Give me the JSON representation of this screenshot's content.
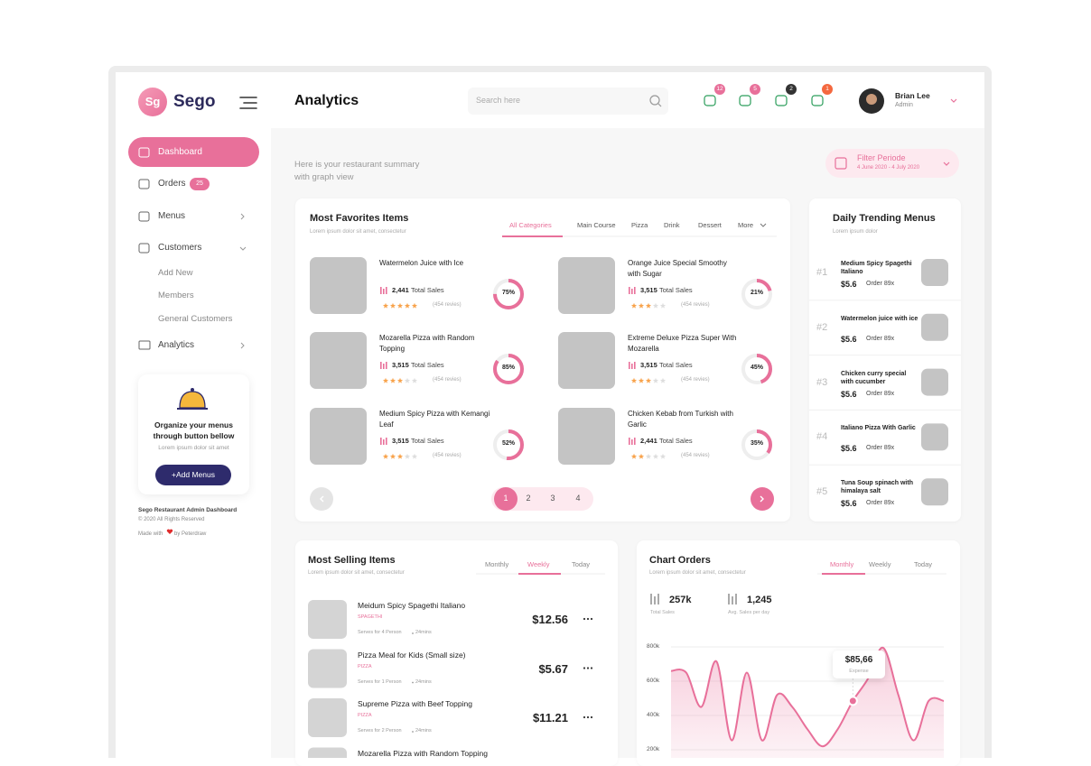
{
  "sidebar": {
    "logo": "Sg",
    "brand": "Sego",
    "nav": [
      {
        "label": "Dashboard"
      },
      {
        "label": "Orders",
        "badge": "25"
      },
      {
        "label": "Menus"
      },
      {
        "label": "Customers"
      }
    ],
    "submenu": [
      "Add New",
      "Members",
      "General Customers"
    ],
    "analytics": "Analytics",
    "promo": {
      "title": "Organize your menus through button bellow",
      "text": "Lorem ipsum dolor sit amet",
      "button": "+Add Menus"
    },
    "footer": {
      "line1": "Sego Restaurant Admin Dashboard",
      "line2": "© 2020 All Rights Reserved",
      "made": "Made with",
      "by": "by Peterdraw"
    }
  },
  "header": {
    "title": "Analytics",
    "search": "Search here",
    "badges": [
      "12",
      "5",
      "2",
      "1"
    ],
    "user": {
      "name": "Brian Lee",
      "role": "Admin"
    }
  },
  "intro": "Here is your restaurant summary with graph view",
  "filter": {
    "label": "Filter Periode",
    "range": "4 June 2020 - 4 July 2020"
  },
  "favorites": {
    "title": "Most Favorites Items",
    "subtitle": "Lorem ipsum dolor sit amet, consectetur",
    "tabs": [
      "All Categories",
      "Main Course",
      "Pizza",
      "Drink",
      "Dessert",
      "More"
    ],
    "items": [
      {
        "name": "Watermelon Juice with Ice",
        "sales": "2,441",
        "sales_label": "Total Sales",
        "reviews": "(454 revies)",
        "rating": 5,
        "percent": 75,
        "percent_label": "75%"
      },
      {
        "name": "Orange Juice Special Smoothy with Sugar",
        "sales": "3,515",
        "sales_label": "Total Sales",
        "reviews": "(454 revies)",
        "rating": 3,
        "percent": 21,
        "percent_label": "21%"
      },
      {
        "name": "Mozarella Pizza with Random Topping",
        "sales": "3,515",
        "sales_label": "Total Sales",
        "reviews": "(454 revies)",
        "rating": 3,
        "percent": 85,
        "percent_label": "85%"
      },
      {
        "name": "Extreme Deluxe Pizza Super With Mozarella",
        "sales": "3,515",
        "sales_label": "Total Sales",
        "reviews": "(454 revies)",
        "rating": 3,
        "percent": 45,
        "percent_label": "45%"
      },
      {
        "name": "Medium Spicy Pizza with Kemangi Leaf",
        "sales": "3,515",
        "sales_label": "Total Sales",
        "reviews": "(454 revies)",
        "rating": 3,
        "percent": 52,
        "percent_label": "52%"
      },
      {
        "name": "Chicken Kebab from Turkish with Garlic",
        "sales": "2,441",
        "sales_label": "Total Sales",
        "reviews": "(454 revies)",
        "rating": 2,
        "percent": 35,
        "percent_label": "35%"
      }
    ],
    "pages": [
      "1",
      "2",
      "3",
      "4"
    ]
  },
  "trending": {
    "title": "Daily Trending Menus",
    "subtitle": "Lorem ipsum dolor",
    "items": [
      {
        "rank": "#1",
        "name": "Medium Spicy Spagethi Italiano",
        "price": "$5.6",
        "orders": "Order 89x"
      },
      {
        "rank": "#2",
        "name": "Watermelon juice with ice",
        "price": "$5.6",
        "orders": "Order 89x"
      },
      {
        "rank": "#3",
        "name": "Chicken curry special with cucumber",
        "price": "$5.6",
        "orders": "Order 89x"
      },
      {
        "rank": "#4",
        "name": "Italiano Pizza With Garlic",
        "price": "$5.6",
        "orders": "Order 89x"
      },
      {
        "rank": "#5",
        "name": "Tuna Soup spinach with himalaya salt",
        "price": "$5.6",
        "orders": "Order 89x"
      }
    ]
  },
  "selling": {
    "title": "Most Selling Items",
    "subtitle": "Lorem ipsum dolor sit amet, consectetur",
    "tabs": [
      "Monthly",
      "Weekly",
      "Today"
    ],
    "items": [
      {
        "name": "Meidum Spicy Spagethi Italiano",
        "category": "SPAGETHI",
        "serves": "Serves for 4 Person",
        "time": "24mins",
        "price": "$12.56"
      },
      {
        "name": "Pizza Meal for Kids (Small size)",
        "category": "PIZZA",
        "serves": "Serves for 1 Person",
        "time": "24mins",
        "price": "$5.67"
      },
      {
        "name": "Supreme Pizza with Beef Topping",
        "category": "PIZZA",
        "serves": "Serves for 2 Person",
        "time": "24mins",
        "price": "$11.21"
      },
      {
        "name": "Mozarella Pizza with Random Topping"
      }
    ]
  },
  "chart_orders": {
    "title": "Chart Orders",
    "subtitle": "Lorem ipsum dolor sit amet, consectetur",
    "tabs": [
      "Monthly",
      "Weekly",
      "Today"
    ],
    "stats": [
      {
        "value": "257k",
        "label": "Total Sales"
      },
      {
        "value": "1,245",
        "label": "Avg. Sales per day"
      }
    ],
    "tooltip": {
      "value": "$85,66",
      "label": "Expense"
    },
    "chart": {
      "type": "line",
      "color": "#e8709a",
      "values": [
        660000,
        650000,
        450000,
        715000,
        255000,
        650000,
        255000,
        520000,
        450000,
        320000,
        220000,
        320000,
        485000,
        615000,
        795000,
        520000,
        255000,
        485000,
        485000
      ],
      "ylim": [
        0,
        800000
      ],
      "yticks": [
        {
          "value": 200000,
          "label": "200k"
        },
        {
          "value": 400000,
          "label": "400k"
        },
        {
          "value": 600000,
          "label": "600k"
        },
        {
          "value": 800000,
          "label": "800k"
        }
      ],
      "grid": true
    }
  }
}
